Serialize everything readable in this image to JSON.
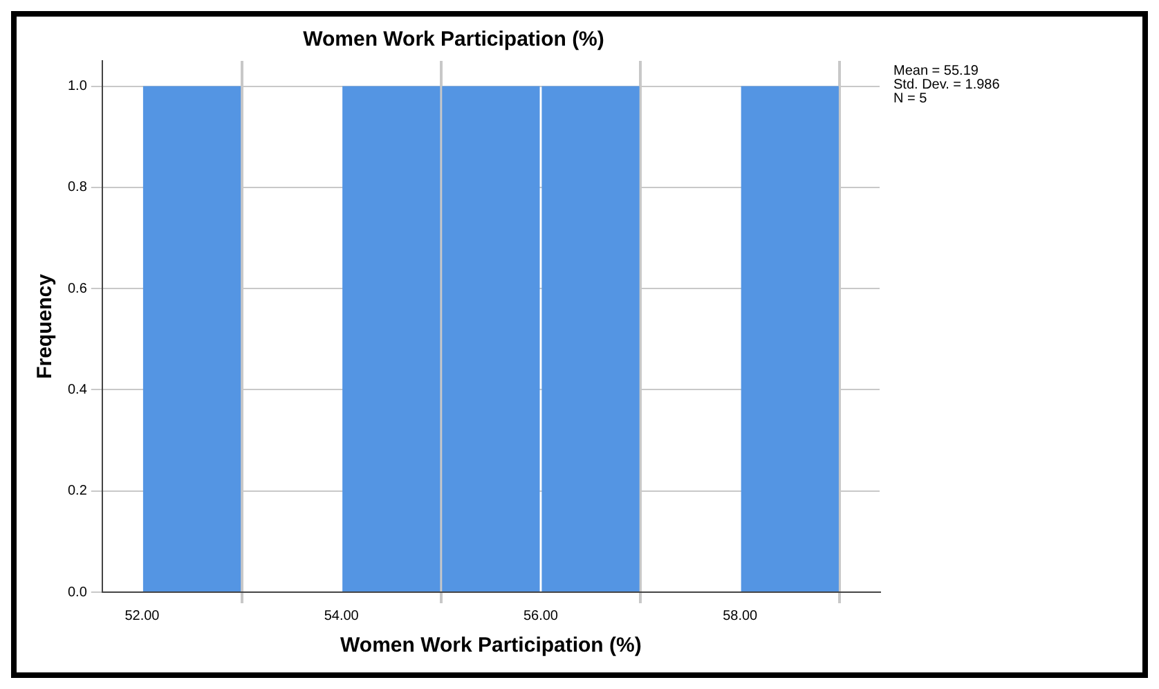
{
  "chart_data": {
    "type": "histogram",
    "title": "Women Work Participation (%)",
    "xlabel": "Women Work Participation (%)",
    "ylabel": "Frequency",
    "bins": [
      52,
      53,
      54,
      55,
      56,
      57,
      58,
      59
    ],
    "values": [
      1,
      0,
      1,
      1,
      1,
      0,
      1
    ],
    "color": "#5495e3",
    "xlim": [
      51.6,
      59.4
    ],
    "xticks": [
      {
        "value": 52,
        "label": "52.00"
      },
      {
        "value": 54,
        "label": "54.00"
      },
      {
        "value": 56,
        "label": "56.00"
      },
      {
        "value": 58,
        "label": "58.00"
      }
    ],
    "ylim": [
      0,
      1.05
    ],
    "yticks": [
      {
        "value": 0,
        "label": "0.0"
      },
      {
        "value": 0.2,
        "label": "0.2"
      },
      {
        "value": 0.4,
        "label": "0.4"
      },
      {
        "value": 0.6,
        "label": "0.6"
      },
      {
        "value": 0.8,
        "label": "0.8"
      },
      {
        "value": 1,
        "label": "1.0"
      }
    ],
    "grid": true,
    "legend": false,
    "annotations": [
      "Mean = 55.19",
      "Std. Dev. = 1.986",
      "N = 5"
    ]
  }
}
